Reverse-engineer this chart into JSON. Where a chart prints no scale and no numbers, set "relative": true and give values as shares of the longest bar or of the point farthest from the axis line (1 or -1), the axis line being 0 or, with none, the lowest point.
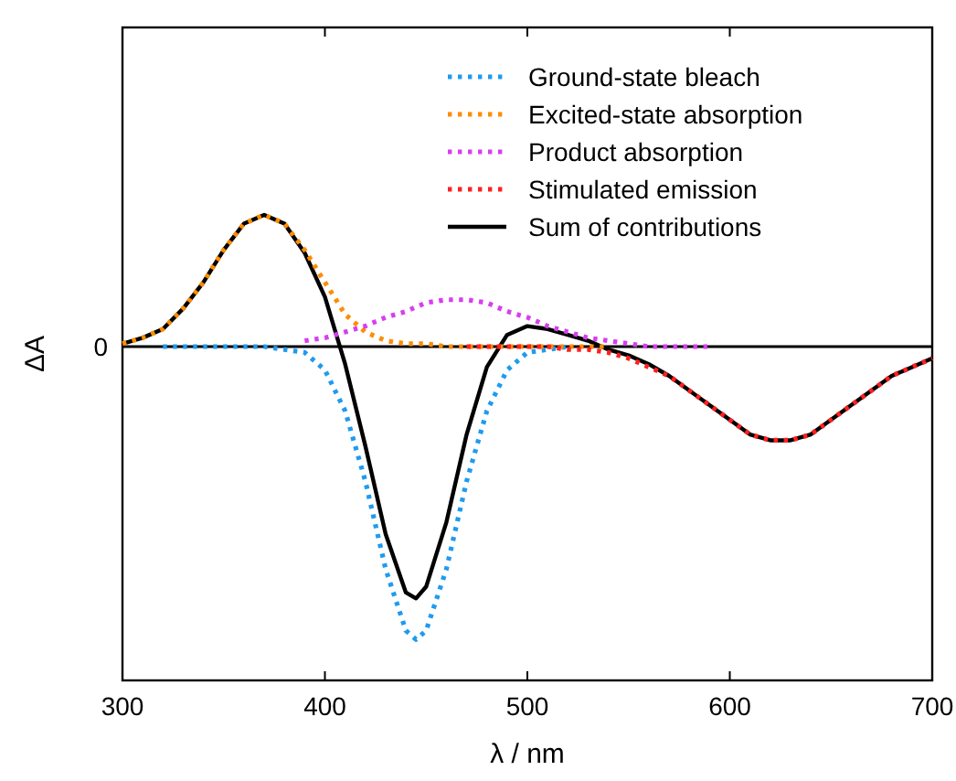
{
  "chart_data": {
    "type": "line",
    "relative": true,
    "xlabel": "λ / nm",
    "ylabel": "ΔA",
    "xlim": [
      300,
      700
    ],
    "xticks": [
      300,
      400,
      500,
      600,
      700
    ],
    "legend": "top right",
    "marker": "none",
    "grid": false,
    "annotations": [
      "0"
    ],
    "series": [
      {
        "name": "Ground-state bleach",
        "color": "#1e9bf0",
        "line_style": "dotted",
        "x": [
          320,
          330,
          340,
          350,
          360,
          370,
          380,
          390,
          400,
          410,
          420,
          430,
          440,
          445,
          450,
          460,
          470,
          480,
          490,
          500,
          510,
          520
        ],
        "values": [
          0,
          0,
          0,
          0,
          0,
          0,
          -0.01,
          -0.02,
          -0.08,
          -0.22,
          -0.46,
          -0.76,
          -0.97,
          -1,
          -0.97,
          -0.76,
          -0.46,
          -0.22,
          -0.08,
          -0.02,
          -0.01,
          0
        ]
      },
      {
        "name": "Excited-state absorption",
        "color": "#ff8c00",
        "line_style": "dotted",
        "x": [
          300,
          310,
          320,
          330,
          340,
          350,
          360,
          370,
          380,
          390,
          400,
          410,
          420,
          430,
          440,
          450,
          460,
          470,
          480,
          490,
          500,
          510,
          520,
          530,
          540
        ],
        "values": [
          0.01,
          0.03,
          0.06,
          0.13,
          0.22,
          0.33,
          0.42,
          0.45,
          0.42,
          0.33,
          0.22,
          0.11,
          0.05,
          0.02,
          0.01,
          0.01,
          0,
          0,
          0,
          0,
          0,
          0,
          0,
          0,
          0
        ]
      },
      {
        "name": "Product absorption",
        "color": "#d83ef0",
        "line_style": "dotted",
        "x": [
          390,
          400,
          410,
          420,
          430,
          440,
          450,
          460,
          470,
          480,
          490,
          500,
          510,
          520,
          530,
          540,
          550,
          560,
          570,
          580,
          590
        ],
        "values": [
          0.02,
          0.03,
          0.05,
          0.07,
          0.1,
          0.12,
          0.15,
          0.16,
          0.16,
          0.15,
          0.12,
          0.1,
          0.07,
          0.05,
          0.03,
          0.02,
          0.01,
          0,
          0,
          0,
          0
        ]
      },
      {
        "name": "Stimulated emission",
        "color": "#ff2020",
        "line_style": "dotted",
        "x": [
          470,
          480,
          490,
          500,
          510,
          520,
          530,
          540,
          550,
          560,
          570,
          580,
          590,
          600,
          610,
          620,
          625,
          630,
          640,
          650,
          660,
          670,
          680,
          690,
          700
        ],
        "values": [
          0,
          0,
          0,
          0,
          0,
          -0.01,
          -0.01,
          -0.02,
          -0.04,
          -0.07,
          -0.1,
          -0.15,
          -0.2,
          -0.25,
          -0.3,
          -0.32,
          -0.32,
          -0.32,
          -0.3,
          -0.25,
          -0.2,
          -0.15,
          -0.1,
          -0.07,
          -0.04
        ]
      },
      {
        "name": "Sum of contributions",
        "color": "#000000",
        "line_style": "solid",
        "x": [
          300,
          310,
          320,
          330,
          340,
          350,
          360,
          370,
          380,
          390,
          400,
          410,
          420,
          430,
          440,
          445,
          450,
          460,
          470,
          480,
          490,
          500,
          510,
          520,
          530,
          540,
          550,
          560,
          570,
          580,
          590,
          600,
          610,
          620,
          625,
          630,
          640,
          650,
          660,
          670,
          680,
          690,
          700
        ],
        "values": [
          0.01,
          0.03,
          0.06,
          0.13,
          0.22,
          0.33,
          0.42,
          0.45,
          0.42,
          0.32,
          0.17,
          -0.06,
          -0.34,
          -0.64,
          -0.84,
          -0.86,
          -0.82,
          -0.6,
          -0.3,
          -0.07,
          0.04,
          0.07,
          0.06,
          0.04,
          0.02,
          -0.01,
          -0.03,
          -0.06,
          -0.1,
          -0.15,
          -0.2,
          -0.25,
          -0.3,
          -0.32,
          -0.32,
          -0.32,
          -0.3,
          -0.25,
          -0.2,
          -0.15,
          -0.1,
          -0.07,
          -0.04
        ]
      }
    ]
  }
}
